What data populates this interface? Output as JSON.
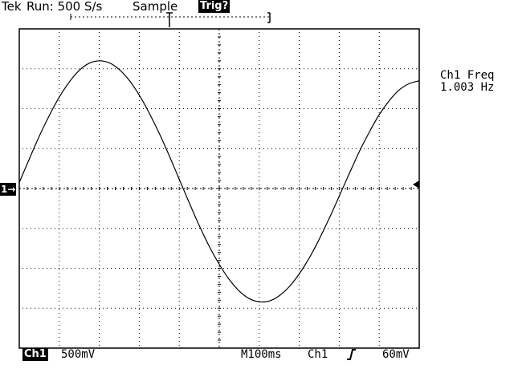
{
  "header": {
    "brand": "Tek",
    "run_state": "Run: 500 S/s",
    "acq_mode": "Sample",
    "trigger_status": "Trig?"
  },
  "measurement": {
    "label": "Ch1 Freq",
    "value": "1.003 Hz"
  },
  "footer": {
    "channel": "Ch1",
    "volts_per_div": "500mV",
    "timebase": "M100ms",
    "trigger_source": "Ch1",
    "trigger_level": "60mV"
  },
  "markers": {
    "ground": "1→"
  },
  "chart_data": {
    "type": "line",
    "title": "",
    "xlabel": "",
    "ylabel": "",
    "grid": true,
    "x_divisions": 10,
    "y_divisions": 8,
    "xlim": [
      0,
      1.0
    ],
    "ylim": [
      -4,
      4
    ],
    "series": [
      {
        "x": [
          0,
          0.025,
          0.05,
          0.075,
          0.1,
          0.125,
          0.15,
          0.175,
          0.2,
          0.225,
          0.25,
          0.275,
          0.3,
          0.325,
          0.35,
          0.375,
          0.4,
          0.425,
          0.45,
          0.475,
          0.5,
          0.525,
          0.55,
          0.575,
          0.6,
          0.625,
          0.65,
          0.675,
          0.7,
          0.725,
          0.75,
          0.775,
          0.8,
          0.825,
          0.85,
          0.875,
          0.9,
          0.925,
          0.95,
          0.975,
          1.0
        ],
        "y": [
          0.15,
          0.74,
          1.31,
          1.83,
          2.29,
          2.67,
          2.96,
          3.14,
          3.2,
          3.15,
          2.98,
          2.71,
          2.34,
          1.89,
          1.38,
          0.82,
          0.23,
          -0.36,
          -0.93,
          -1.45,
          -1.9,
          -2.28,
          -2.57,
          -2.76,
          -2.84,
          -2.82,
          -2.69,
          -2.46,
          -2.14,
          -1.74,
          -1.27,
          -0.75,
          -0.19,
          0.37,
          0.92,
          1.41,
          1.85,
          2.2,
          2.47,
          2.63,
          2.7
        ]
      }
    ]
  }
}
